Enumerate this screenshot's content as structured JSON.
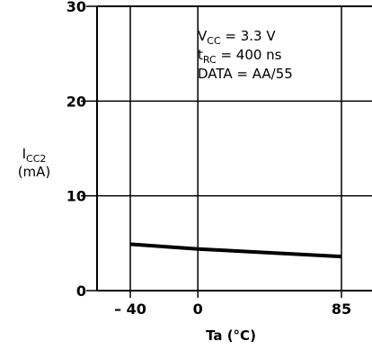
{
  "chart_data": {
    "type": "line",
    "x": [
      -40,
      0,
      85
    ],
    "series": [
      {
        "values": [
          4.9,
          4.4,
          3.6
        ]
      }
    ],
    "xticks": [
      -40,
      0,
      85
    ],
    "yticks": [
      0,
      10,
      20,
      30
    ],
    "xtick_labels": [
      "– 40",
      "0",
      "85"
    ],
    "ytick_labels": [
      "0",
      "10",
      "20",
      "30"
    ],
    "xlim": [
      -40,
      85
    ],
    "ylim": [
      0,
      30
    ],
    "xlabel": "Ta (°C)",
    "ylabel": {
      "symbol": "I",
      "subscript": "CC2",
      "unit": "(mA)"
    },
    "grid": true,
    "annotation": [
      {
        "base": "V",
        "subscript": "CC",
        "rest": " = 3.3 V"
      },
      {
        "base": "t",
        "subscript": "RC",
        "rest": " = 400 ns"
      },
      {
        "base": "",
        "subscript": "",
        "rest": "DATA = AA/55"
      }
    ]
  }
}
